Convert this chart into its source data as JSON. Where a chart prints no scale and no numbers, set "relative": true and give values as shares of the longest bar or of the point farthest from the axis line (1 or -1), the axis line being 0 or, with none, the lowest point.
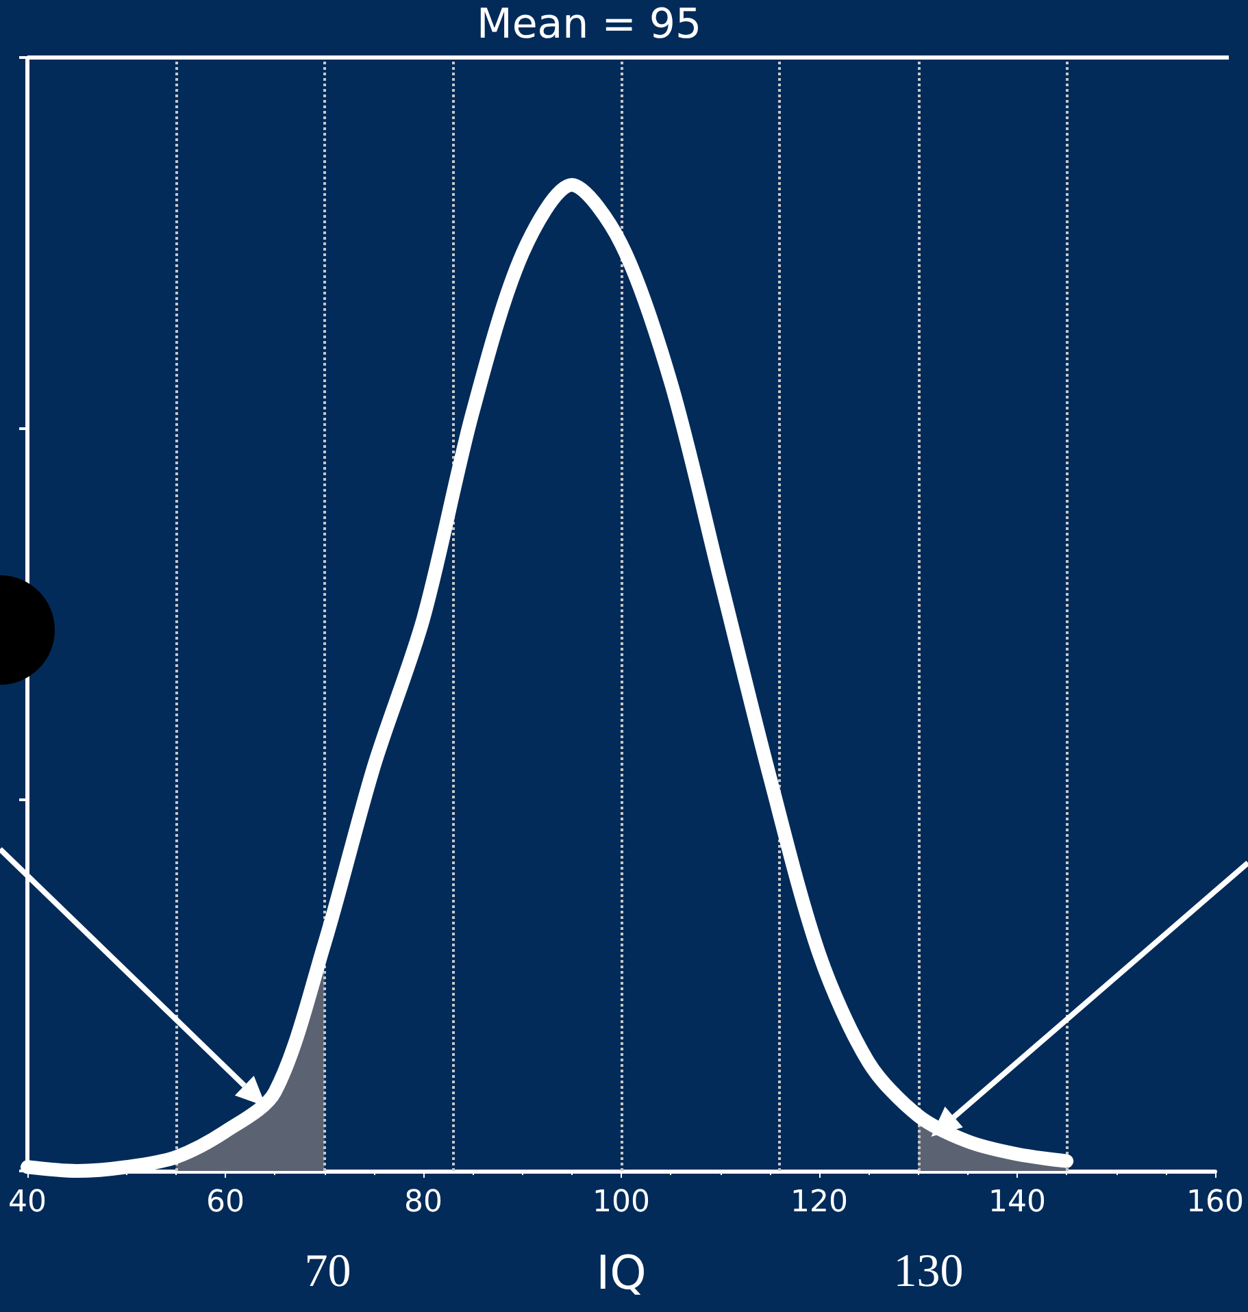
{
  "chart_data": {
    "type": "line",
    "title": "Mean = 95",
    "xlabel": "IQ",
    "relative": true,
    "x": [
      40,
      45,
      50,
      55,
      60,
      65,
      70,
      75,
      80,
      85,
      90,
      95,
      100,
      105,
      110,
      115,
      120,
      125,
      130,
      135,
      140,
      145
    ],
    "series": [
      {
        "color": "#ffffff",
        "values": [
          0.004,
          0.0,
          0.004,
          0.014,
          0.04,
          0.08,
          0.23,
          0.41,
          0.56,
          0.77,
          0.93,
          1,
          0.94,
          0.8,
          0.6,
          0.4,
          0.22,
          0.11,
          0.056,
          0.03,
          0.017,
          0.01
        ]
      },
      {
        "type": "area",
        "color": "#5b6372",
        "x": [
          55,
          60,
          65,
          70
        ],
        "values": [
          0.014,
          0.04,
          0.08,
          0.23
        ]
      },
      {
        "type": "area",
        "color": "#5b6372",
        "x": [
          130,
          135,
          140,
          145
        ],
        "values": [
          0.056,
          0.03,
          0.017,
          0.01
        ]
      }
    ],
    "xlim": [
      40,
      160
    ],
    "xticks": [
      40,
      60,
      80,
      100,
      120,
      140,
      160
    ],
    "ref_lines": [
      {
        "axis": "x",
        "value": 55,
        "color": "#c8c8c8",
        "line_style": "dotted"
      },
      {
        "axis": "x",
        "value": 70,
        "color": "#c8c8c8",
        "line_style": "dotted"
      },
      {
        "axis": "x",
        "value": 83,
        "color": "#c8c8c8",
        "line_style": "dotted"
      },
      {
        "axis": "x",
        "value": 100,
        "color": "#c8c8c8",
        "line_style": "dotted"
      },
      {
        "axis": "x",
        "value": 116,
        "color": "#c8c8c8",
        "line_style": "dotted"
      },
      {
        "axis": "x",
        "value": 130,
        "color": "#c8c8c8",
        "line_style": "dotted"
      },
      {
        "axis": "x",
        "value": 145,
        "color": "#c8c8c8",
        "line_style": "dotted"
      }
    ],
    "annotations": [
      "70",
      "130"
    ]
  }
}
